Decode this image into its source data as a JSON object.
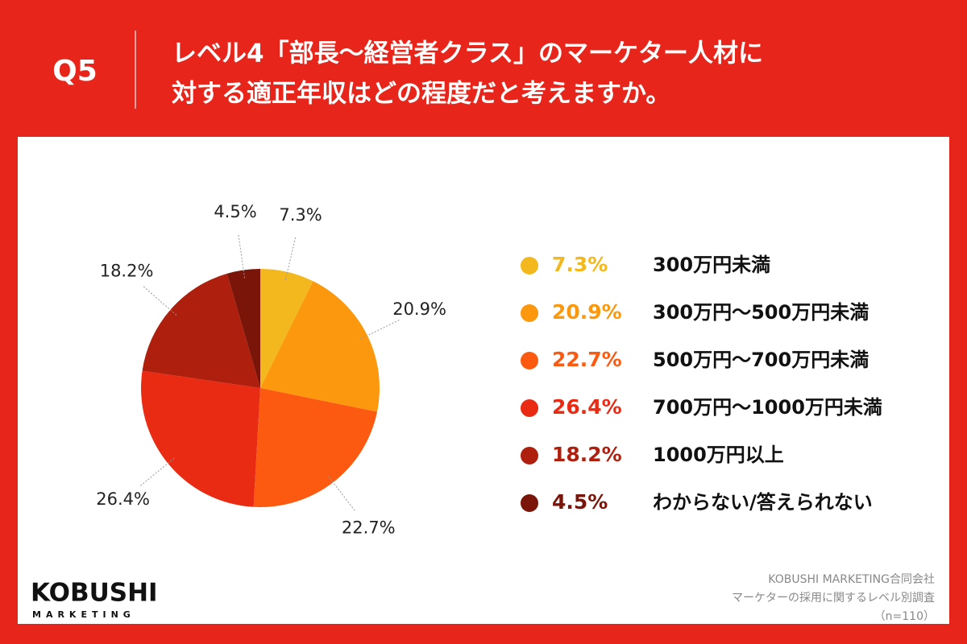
{
  "header": {
    "question": "Q5",
    "title": [
      "レベル4「部長〜経営者クラス」のマーケター人材に",
      "対する適正年収はどの程度だと考えますか。"
    ]
  },
  "chart_data": {
    "type": "pie",
    "categories": [
      "300万円未満",
      "300万円〜500万円未満",
      "500万円〜700万円未満",
      "700万円〜1000万円未満",
      "1000万円以上",
      "わからない/答えられない"
    ],
    "values": [
      7.3,
      20.9,
      22.7,
      26.4,
      18.2,
      4.5
    ],
    "value_labels": [
      "7.3%",
      "20.9%",
      "22.7%",
      "26.4%",
      "18.2%",
      "4.5%"
    ],
    "colors": [
      "#f4b81f",
      "#fb980e",
      "#fb5a10",
      "#ea2b14",
      "#af1f0d",
      "#7a1509"
    ]
  },
  "footer": {
    "logo": "KOBUSHI",
    "logo_sub": "MARKETING",
    "company": "KOBUSHI MARKETING合同会社",
    "survey": "マーケターの採用に関するレベル別調査",
    "sample": "（n=110）"
  }
}
